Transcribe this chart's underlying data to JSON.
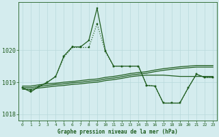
{
  "background_color": "#d4ecee",
  "grid_color": "#c0dfe2",
  "line_color": "#1e5c1e",
  "title": "Graphe pression niveau de la mer (hPa)",
  "xlim": [
    -0.5,
    23.5
  ],
  "ylim": [
    1017.8,
    1021.5
  ],
  "yticks": [
    1018,
    1019,
    1020
  ],
  "xticks": [
    0,
    1,
    2,
    3,
    4,
    5,
    6,
    7,
    8,
    9,
    10,
    11,
    12,
    13,
    14,
    15,
    16,
    17,
    18,
    19,
    20,
    21,
    22,
    23
  ],
  "series": [
    {
      "x": [
        0,
        1,
        2,
        3,
        4,
        5,
        6,
        7,
        8,
        9,
        10,
        11,
        12,
        13,
        14,
        15,
        16,
        17,
        18,
        19,
        20,
        21,
        22,
        23
      ],
      "y": [
        1018.88,
        1018.88,
        1018.92,
        1018.95,
        1018.97,
        1019.0,
        1019.02,
        1019.05,
        1019.08,
        1019.1,
        1019.15,
        1019.18,
        1019.22,
        1019.27,
        1019.3,
        1019.33,
        1019.38,
        1019.42,
        1019.45,
        1019.48,
        1019.5,
        1019.52,
        1019.52,
        1019.52
      ],
      "linestyle": "-",
      "marker": false,
      "linewidth": 0.9
    },
    {
      "x": [
        0,
        1,
        2,
        3,
        4,
        5,
        6,
        7,
        8,
        9,
        10,
        11,
        12,
        13,
        14,
        15,
        16,
        17,
        18,
        19,
        20,
        21,
        22,
        23
      ],
      "y": [
        1018.83,
        1018.83,
        1018.87,
        1018.9,
        1018.93,
        1018.95,
        1018.98,
        1019.0,
        1019.03,
        1019.05,
        1019.1,
        1019.13,
        1019.17,
        1019.22,
        1019.25,
        1019.28,
        1019.33,
        1019.37,
        1019.4,
        1019.43,
        1019.45,
        1019.47,
        1019.47,
        1019.47
      ],
      "linestyle": "-",
      "marker": false,
      "linewidth": 0.9
    },
    {
      "x": [
        0,
        1,
        2,
        3,
        4,
        5,
        6,
        7,
        8,
        9,
        10,
        11,
        12,
        13,
        14,
        15,
        16,
        17,
        18,
        19,
        20,
        21,
        22,
        23
      ],
      "y": [
        1018.78,
        1018.78,
        1018.82,
        1018.85,
        1018.88,
        1018.9,
        1018.93,
        1018.95,
        1018.98,
        1019.0,
        1019.05,
        1019.08,
        1019.12,
        1019.17,
        1019.2,
        1019.22,
        1019.22,
        1019.22,
        1019.2,
        1019.18,
        1019.18,
        1019.18,
        1019.18,
        1019.18
      ],
      "linestyle": "-",
      "marker": false,
      "linewidth": 0.9
    },
    {
      "x": [
        0,
        1,
        2,
        3,
        4,
        5,
        6,
        7,
        8,
        9,
        10,
        11,
        12,
        13,
        14,
        15,
        16,
        17,
        18,
        19,
        20,
        21,
        22,
        23
      ],
      "y": [
        1018.82,
        1018.75,
        1018.87,
        1019.0,
        1019.18,
        1019.78,
        1020.08,
        1020.08,
        1020.08,
        1020.82,
        1019.95,
        1019.5,
        1019.5,
        1019.5,
        1019.5,
        1018.9,
        1018.88,
        1018.35,
        1018.35,
        1018.35,
        1018.82,
        1019.25,
        1019.15,
        1019.15
      ],
      "linestyle": ":",
      "marker": true,
      "linewidth": 0.9
    },
    {
      "x": [
        0,
        1,
        2,
        3,
        4,
        5,
        6,
        7,
        8,
        9,
        10,
        11,
        12,
        13,
        14,
        15,
        16,
        17,
        18,
        19,
        20,
        21,
        22,
        23
      ],
      "y": [
        1018.82,
        1018.7,
        1018.87,
        1019.0,
        1019.18,
        1019.82,
        1020.1,
        1020.1,
        1020.3,
        1021.3,
        1019.98,
        1019.5,
        1019.5,
        1019.5,
        1019.5,
        1018.9,
        1018.88,
        1018.35,
        1018.35,
        1018.35,
        1018.82,
        1019.25,
        1019.15,
        1019.15
      ],
      "linestyle": "-",
      "marker": true,
      "linewidth": 0.9
    }
  ]
}
